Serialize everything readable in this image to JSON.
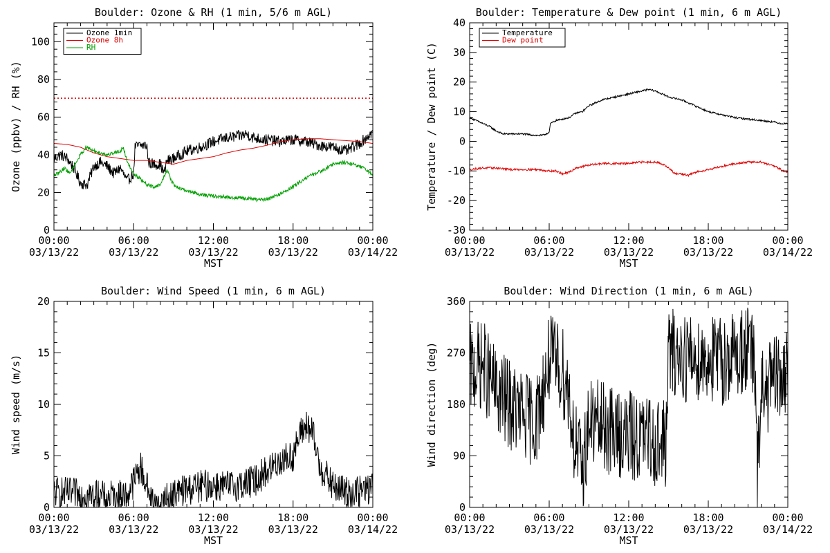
{
  "chart_data": [
    {
      "type": "line",
      "title": "Boulder: Ozone & RH (1 min, 5/6 m AGL)",
      "xlabel": "MST",
      "ylabel": "Ozone (ppbv) / RH (%)",
      "x_ticks": [
        {
          "time": "00:00",
          "date": "03/13/22"
        },
        {
          "time": "06:00",
          "date": "03/13/22"
        },
        {
          "time": "12:00",
          "date": "03/13/22"
        },
        {
          "time": "18:00",
          "date": "03/13/22"
        },
        {
          "time": "00:00",
          "date": "03/14/22"
        }
      ],
      "xlim_hours": [
        0,
        24
      ],
      "ylim": [
        0,
        110
      ],
      "y_ticks": [
        0,
        20,
        40,
        60,
        80,
        100
      ],
      "legend": "top-left",
      "reference_line": {
        "y": 70,
        "color": "#e00000",
        "style": "dotted"
      },
      "series": [
        {
          "name": "Ozone 1min",
          "color": "#000000",
          "noise": 3,
          "points": [
            [
              0,
              38
            ],
            [
              0.5,
              40
            ],
            [
              1,
              38
            ],
            [
              1.5,
              33
            ],
            [
              2,
              25
            ],
            [
              2.5,
              24
            ],
            [
              3,
              34
            ],
            [
              3.5,
              36
            ],
            [
              4,
              34
            ],
            [
              4.5,
              30
            ],
            [
              5,
              33
            ],
            [
              5.5,
              26
            ],
            [
              6,
              30
            ],
            [
              6.1,
              44
            ],
            [
              6.5,
              45
            ],
            [
              7,
              45
            ],
            [
              7.1,
              36
            ],
            [
              7.5,
              35
            ],
            [
              8,
              35
            ],
            [
              8.3,
              30
            ],
            [
              8.5,
              37
            ],
            [
              9,
              38
            ],
            [
              9.5,
              40
            ],
            [
              10,
              42
            ],
            [
              11,
              44
            ],
            [
              12,
              47
            ],
            [
              13,
              49
            ],
            [
              14,
              50
            ],
            [
              14.5,
              51
            ],
            [
              15,
              49
            ],
            [
              16,
              48
            ],
            [
              17,
              47
            ],
            [
              18,
              48
            ],
            [
              19,
              47
            ],
            [
              20,
              45
            ],
            [
              21,
              44
            ],
            [
              22,
              42
            ],
            [
              22.5,
              44
            ],
            [
              23,
              46
            ],
            [
              23.5,
              49
            ],
            [
              24,
              52
            ]
          ]
        },
        {
          "name": "Ozone 8h",
          "color": "#e00000",
          "noise": 0,
          "points": [
            [
              0,
              46
            ],
            [
              1,
              45.5
            ],
            [
              2,
              44
            ],
            [
              3,
              41
            ],
            [
              4,
              39
            ],
            [
              5,
              38
            ],
            [
              6,
              37
            ],
            [
              7,
              37
            ],
            [
              8,
              36
            ],
            [
              9,
              35
            ],
            [
              10,
              37
            ],
            [
              11,
              38
            ],
            [
              12,
              39
            ],
            [
              13,
              41
            ],
            [
              14,
              42.5
            ],
            [
              15,
              43.5
            ],
            [
              16,
              45
            ],
            [
              17,
              47
            ],
            [
              18,
              48
            ],
            [
              19,
              48.5
            ],
            [
              20,
              48.5
            ],
            [
              21,
              48
            ],
            [
              22,
              47.5
            ],
            [
              23,
              47
            ],
            [
              24,
              46
            ]
          ]
        },
        {
          "name": "RH",
          "color": "#00a000",
          "noise": 1,
          "points": [
            [
              0,
              29
            ],
            [
              0.3,
              30
            ],
            [
              0.8,
              33
            ],
            [
              1.2,
              30
            ],
            [
              1.5,
              34
            ],
            [
              2,
              40
            ],
            [
              2.4,
              44
            ],
            [
              3,
              42
            ],
            [
              4,
              40
            ],
            [
              5,
              42
            ],
            [
              5.2,
              44
            ],
            [
              5.5,
              37
            ],
            [
              6,
              30
            ],
            [
              6.5,
              27
            ],
            [
              7,
              24
            ],
            [
              7.5,
              23
            ],
            [
              8,
              24
            ],
            [
              8.2,
              27
            ],
            [
              8.5,
              32
            ],
            [
              9,
              24
            ],
            [
              9.5,
              22
            ],
            [
              10,
              21
            ],
            [
              11,
              19
            ],
            [
              12,
              18
            ],
            [
              13,
              17.5
            ],
            [
              14,
              17
            ],
            [
              15,
              16.5
            ],
            [
              15.5,
              16
            ],
            [
              16,
              16.5
            ],
            [
              17,
              19
            ],
            [
              18,
              23
            ],
            [
              19,
              28
            ],
            [
              20,
              31
            ],
            [
              21,
              35
            ],
            [
              22,
              36
            ],
            [
              23,
              34
            ],
            [
              23.5,
              32
            ],
            [
              24,
              29
            ]
          ]
        }
      ]
    },
    {
      "type": "line",
      "title": "Boulder: Temperature & Dew point (1 min, 6 m AGL)",
      "xlabel": "MST",
      "ylabel": "Temperature / Dew point (C)",
      "x_ticks": [
        {
          "time": "00:00",
          "date": "03/13/22"
        },
        {
          "time": "06:00",
          "date": "03/13/22"
        },
        {
          "time": "12:00",
          "date": "03/13/22"
        },
        {
          "time": "18:00",
          "date": "03/13/22"
        },
        {
          "time": "00:00",
          "date": "03/14/22"
        }
      ],
      "xlim_hours": [
        0,
        24
      ],
      "ylim": [
        -30,
        40
      ],
      "y_ticks": [
        -30,
        -20,
        -10,
        0,
        10,
        20,
        30,
        40
      ],
      "legend": "top-left",
      "series": [
        {
          "name": "Temperature",
          "color": "#000000",
          "noise": 0.3,
          "points": [
            [
              0,
              8
            ],
            [
              0.5,
              7
            ],
            [
              1,
              6
            ],
            [
              1.5,
              5
            ],
            [
              2,
              3.5
            ],
            [
              2.5,
              2.5
            ],
            [
              3,
              2.5
            ],
            [
              4,
              2.5
            ],
            [
              5,
              2
            ],
            [
              5.5,
              2
            ],
            [
              6,
              3
            ],
            [
              6.1,
              6
            ],
            [
              6.5,
              7
            ],
            [
              7,
              7.5
            ],
            [
              7.5,
              8
            ],
            [
              8,
              9.5
            ],
            [
              8.5,
              10
            ],
            [
              9,
              12
            ],
            [
              9.5,
              13
            ],
            [
              10,
              14
            ],
            [
              11,
              15
            ],
            [
              12,
              16
            ],
            [
              13,
              17
            ],
            [
              13.5,
              17.5
            ],
            [
              14,
              17
            ],
            [
              14.5,
              16
            ],
            [
              15,
              15
            ],
            [
              16,
              14
            ],
            [
              17,
              12
            ],
            [
              18,
              10
            ],
            [
              19,
              9
            ],
            [
              20,
              8
            ],
            [
              21,
              7.5
            ],
            [
              22,
              7
            ],
            [
              23,
              6.5
            ],
            [
              23.5,
              6
            ],
            [
              24,
              6
            ]
          ]
        },
        {
          "name": "Dew point",
          "color": "#e00000",
          "noise": 0.35,
          "points": [
            [
              0,
              -9.5
            ],
            [
              1,
              -9
            ],
            [
              2,
              -9
            ],
            [
              3,
              -9.5
            ],
            [
              4,
              -9.5
            ],
            [
              5,
              -9.5
            ],
            [
              6,
              -10
            ],
            [
              6.5,
              -10
            ],
            [
              7,
              -11
            ],
            [
              7.5,
              -10.5
            ],
            [
              8,
              -9
            ],
            [
              9,
              -8
            ],
            [
              10,
              -7.5
            ],
            [
              11,
              -7.5
            ],
            [
              12,
              -7.5
            ],
            [
              13,
              -7
            ],
            [
              14,
              -7
            ],
            [
              14.5,
              -7.5
            ],
            [
              15,
              -9
            ],
            [
              15.5,
              -11
            ],
            [
              16,
              -11
            ],
            [
              16.5,
              -11.5
            ],
            [
              17,
              -10.5
            ],
            [
              18,
              -9.5
            ],
            [
              19,
              -8.5
            ],
            [
              20,
              -7.5
            ],
            [
              21,
              -7
            ],
            [
              22,
              -7
            ],
            [
              23,
              -8.5
            ],
            [
              23.5,
              -9.5
            ],
            [
              24,
              -10.5
            ]
          ]
        }
      ]
    },
    {
      "type": "line",
      "title": "Boulder: Wind Speed (1 min, 6 m AGL)",
      "xlabel": "MST",
      "ylabel": "Wind speed (m/s)",
      "x_ticks": [
        {
          "time": "00:00",
          "date": "03/13/22"
        },
        {
          "time": "06:00",
          "date": "03/13/22"
        },
        {
          "time": "12:00",
          "date": "03/13/22"
        },
        {
          "time": "18:00",
          "date": "03/13/22"
        },
        {
          "time": "00:00",
          "date": "03/14/22"
        }
      ],
      "xlim_hours": [
        0,
        24
      ],
      "ylim": [
        0,
        20
      ],
      "y_ticks": [
        0,
        5,
        10,
        15,
        20
      ],
      "series": [
        {
          "color": "#000000",
          "noise": 1.6,
          "floor": 0,
          "points": [
            [
              0,
              1.5
            ],
            [
              2,
              1.2
            ],
            [
              4,
              1.0
            ],
            [
              5.5,
              1.2
            ],
            [
              6,
              2.5
            ],
            [
              6.5,
              4
            ],
            [
              7,
              2
            ],
            [
              7.5,
              0.5
            ],
            [
              8,
              0.3
            ],
            [
              9,
              1.2
            ],
            [
              10,
              1.8
            ],
            [
              11,
              2
            ],
            [
              12,
              2.2
            ],
            [
              13,
              2
            ],
            [
              14,
              2.2
            ],
            [
              15,
              2.5
            ],
            [
              16,
              3.5
            ],
            [
              17,
              4.5
            ],
            [
              18,
              5
            ],
            [
              18.5,
              7
            ],
            [
              19,
              8
            ],
            [
              19.5,
              7
            ],
            [
              20,
              4
            ],
            [
              21,
              2
            ],
            [
              22,
              1.5
            ],
            [
              23,
              1.5
            ],
            [
              24,
              2
            ]
          ]
        }
      ]
    },
    {
      "type": "line",
      "title": "Boulder: Wind Direction (1 min, 6 m AGL)",
      "xlabel": "MST",
      "ylabel": "Wind direction (deg)",
      "x_ticks": [
        {
          "time": "00:00",
          "date": "03/13/22"
        },
        {
          "time": "06:00",
          "date": "03/13/22"
        },
        {
          "time": "12:00",
          "date": "03/13/22"
        },
        {
          "time": "18:00",
          "date": "03/13/22"
        },
        {
          "time": "00:00",
          "date": "03/14/22"
        }
      ],
      "xlim_hours": [
        0,
        24
      ],
      "ylim": [
        0,
        360
      ],
      "y_ticks": [
        0,
        90,
        180,
        270,
        360
      ],
      "series": [
        {
          "color": "#000000",
          "noise": 80,
          "floor": 0,
          "ceiling": 360,
          "points": [
            [
              0,
              240
            ],
            [
              1,
              250
            ],
            [
              2,
              200
            ],
            [
              3,
              180
            ],
            [
              4,
              160
            ],
            [
              5,
              150
            ],
            [
              5.8,
              230
            ],
            [
              6,
              260
            ],
            [
              7,
              240
            ],
            [
              7.5,
              200
            ],
            [
              7.8,
              130
            ],
            [
              8.5,
              60
            ],
            [
              9,
              150
            ],
            [
              10,
              140
            ],
            [
              11,
              130
            ],
            [
              12,
              125
            ],
            [
              13,
              120
            ],
            [
              14,
              115
            ],
            [
              14.8,
              110
            ],
            [
              15,
              270
            ],
            [
              16,
              265
            ],
            [
              17,
              260
            ],
            [
              18,
              260
            ],
            [
              19,
              255
            ],
            [
              20,
              265
            ],
            [
              21,
              280
            ],
            [
              21.5,
              250
            ],
            [
              21.7,
              40
            ],
            [
              22,
              200
            ],
            [
              23,
              220
            ],
            [
              24,
              230
            ]
          ]
        }
      ]
    }
  ]
}
